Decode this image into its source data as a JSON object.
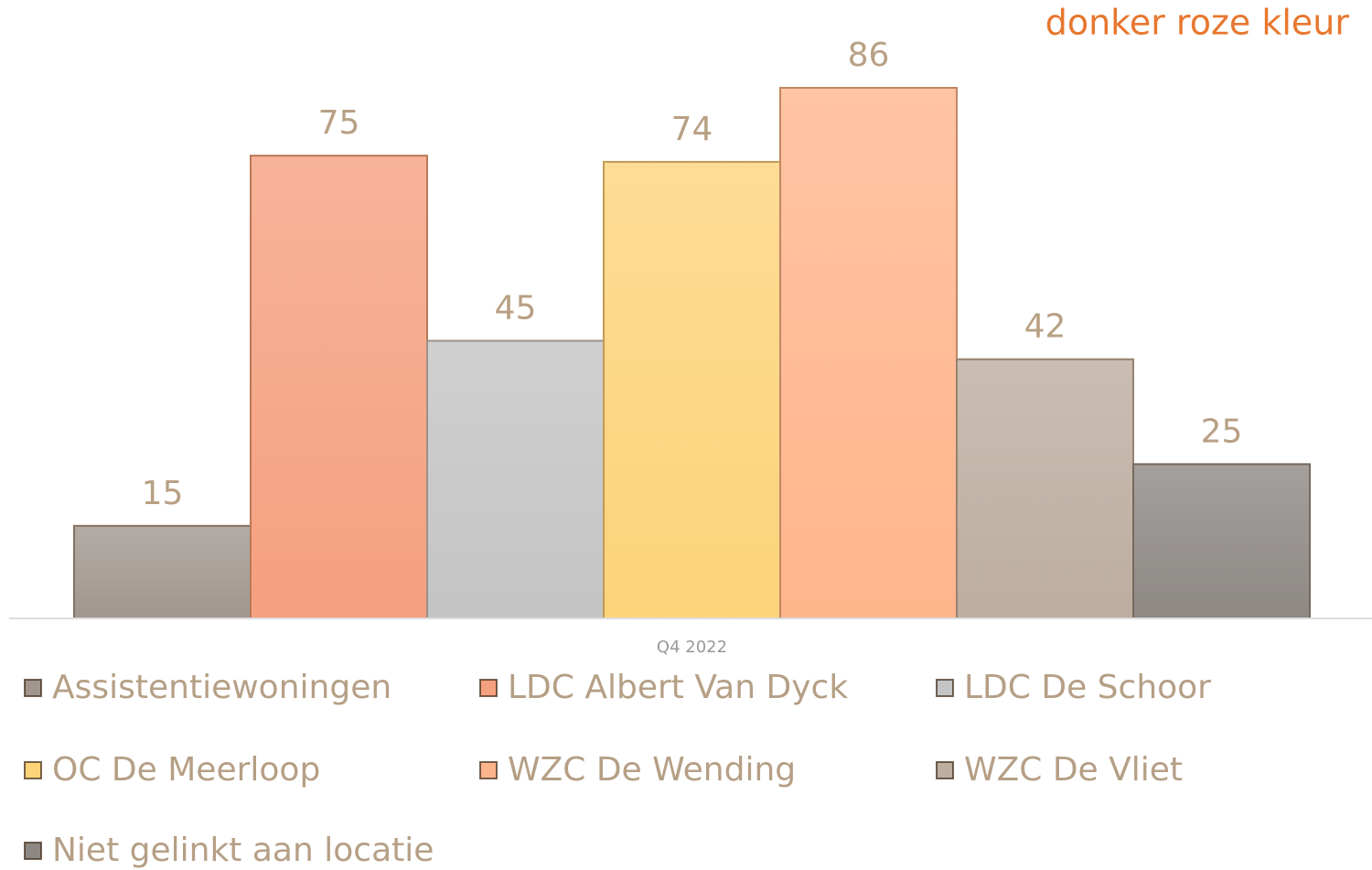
{
  "chart_data": {
    "type": "bar",
    "annotation": "donker roze kleur",
    "categories": [
      "Q4 2022"
    ],
    "series": [
      {
        "name": "Assistentiewoningen",
        "color": "#a0968f",
        "values": [
          15
        ]
      },
      {
        "name": "LDC Albert Van Dyck",
        "color": "#f5a07f",
        "values": [
          75
        ]
      },
      {
        "name": "LDC De Schoor",
        "color": "#c4c4c4",
        "values": [
          45
        ]
      },
      {
        "name": "OC De Meerloop",
        "color": "#fdd37a",
        "values": [
          74
        ]
      },
      {
        "name": "WZC De Wending",
        "color": "#ffb58c",
        "values": [
          86
        ]
      },
      {
        "name": "WZC De Vliet",
        "color": "#bcad9f",
        "values": [
          42
        ]
      },
      {
        "name": "Niet gelinkt aan locatie",
        "color": "#8d8884",
        "values": [
          25
        ]
      }
    ]
  }
}
